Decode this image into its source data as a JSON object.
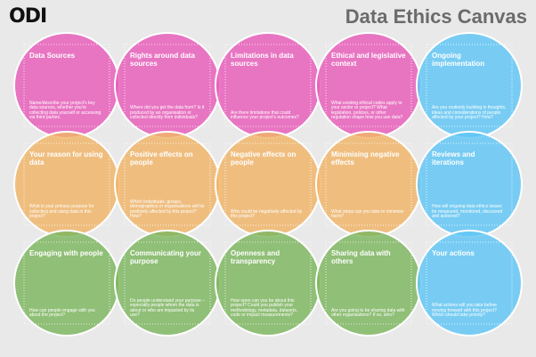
{
  "header": {
    "logo": "ODI",
    "title": "Data Ethics Canvas"
  },
  "rows": [
    {
      "cells": [
        {
          "title": "Data Sources",
          "question": "Name/describe your project's key data sources, whether you're collecting data yourself or accessing via third parties."
        },
        {
          "title": "Rights around data sources",
          "question": "Where did you get the data from? Is it produced by an organisation or collected directly from individuals?"
        },
        {
          "title": "Limitations in data sources",
          "question": "Are there limitations that could influence your project's outcomes?"
        },
        {
          "title": "Ethical and legislative context",
          "question": "What existing ethical codes apply to your sector or project? What legislation, policies, or other regulation shape how you use data?"
        },
        {
          "title": "Ongoing implementation",
          "question": "Are you routinely building in thoughts, ideas and considerations of people affected by your project? How?"
        }
      ]
    },
    {
      "cells": [
        {
          "title": "Your reason for using data",
          "question": "What is your primary purpose for collecting and using data in this project?"
        },
        {
          "title": "Positive effects on people",
          "question": "Which individuals, groups, demographics or organisations will be positively affected by this project? How?"
        },
        {
          "title": "Negative effects on people",
          "question": "Who could be negatively affected by this project?"
        },
        {
          "title": "Minimising negative effects",
          "question": "What steps can you take to minimise harm?"
        },
        {
          "title": "Reviews and iterations",
          "question": "How will ongoing data ethics issues be measured, monitored, discussed and actioned?"
        }
      ]
    },
    {
      "cells": [
        {
          "title": "Engaging with people",
          "question": "How can people engage with you about the project?"
        },
        {
          "title": "Communicating your purpose",
          "question": "Do people understand your purpose – especially people whom the data is about or who are impacted by its use?"
        },
        {
          "title": "Openness and transparency",
          "question": "How open can you be about this project? Could you publish your methodology, metadata, datasets, code or impact measurements?"
        },
        {
          "title": "Sharing data with others",
          "question": "Are you going to be sharing data with other organisations? If so, who?"
        },
        {
          "title": "Your actions",
          "question": "What actions will you take before moving forward with this project? Which should take priority?"
        }
      ]
    }
  ]
}
